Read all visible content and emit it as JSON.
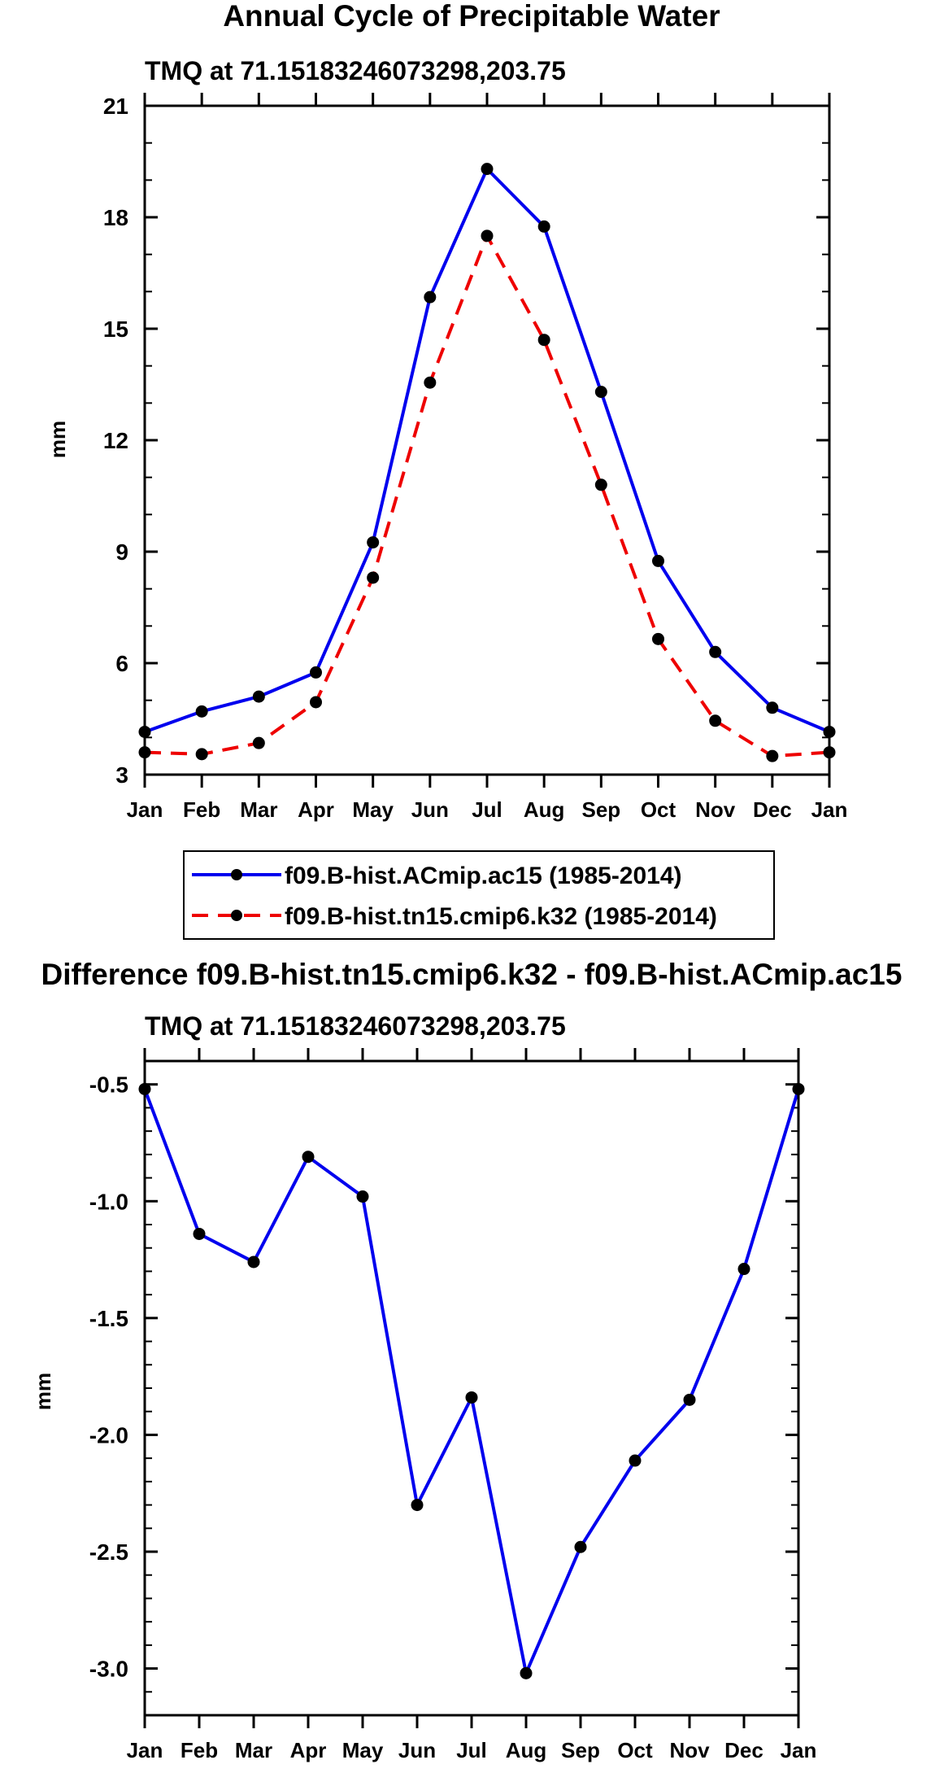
{
  "chart_data": [
    {
      "type": "line",
      "title": "Annual Cycle of Precipitable Water",
      "subtitle": "TMQ at 71.15183246073298,203.75",
      "xlabel": "",
      "ylabel": "mm",
      "categories": [
        "Jan",
        "Feb",
        "Mar",
        "Apr",
        "May",
        "Jun",
        "Jul",
        "Aug",
        "Sep",
        "Oct",
        "Nov",
        "Dec",
        "Jan"
      ],
      "ylim": [
        3,
        21
      ],
      "yticks": [
        3,
        6,
        9,
        12,
        15,
        18,
        21
      ],
      "yticks_labels": [
        "3",
        "6",
        "9",
        "12",
        "15",
        "18",
        "21"
      ],
      "grid": false,
      "legend_position": "below",
      "series": [
        {
          "name": "f09.B-hist.ACmip.ac15 (1985-2014)",
          "color": "#0000ee",
          "dash": "solid",
          "values": [
            4.15,
            4.7,
            5.1,
            5.75,
            9.25,
            15.85,
            19.3,
            17.75,
            13.3,
            8.75,
            6.3,
            4.8,
            4.15
          ]
        },
        {
          "name": "f09.B-hist.tn15.cmip6.k32 (1985-2014)",
          "color": "#ee0000",
          "dash": "dashed",
          "values": [
            3.6,
            3.55,
            3.85,
            4.95,
            8.3,
            13.55,
            17.5,
            14.7,
            10.8,
            6.65,
            4.45,
            3.5,
            3.6
          ]
        }
      ]
    },
    {
      "type": "line",
      "title": "Difference f09.B-hist.tn15.cmip6.k32 - f09.B-hist.ACmip.ac15",
      "subtitle": "TMQ at 71.15183246073298,203.75",
      "xlabel": "",
      "ylabel": "mm",
      "categories": [
        "Jan",
        "Feb",
        "Mar",
        "Apr",
        "May",
        "Jun",
        "Jul",
        "Aug",
        "Sep",
        "Oct",
        "Nov",
        "Dec",
        "Jan"
      ],
      "ylim": [
        -3.2,
        -0.4
      ],
      "yticks": [
        -3.0,
        -2.5,
        -2.0,
        -1.5,
        -1.0,
        -0.5
      ],
      "yticks_labels": [
        "-3.0",
        "-2.5",
        "-2.0",
        "-1.5",
        "-1.0",
        "-0.5"
      ],
      "grid": false,
      "series": [
        {
          "name": "difference",
          "color": "#0000ee",
          "dash": "solid",
          "values": [
            -0.52,
            -1.14,
            -1.26,
            -0.81,
            -0.98,
            -2.3,
            -1.84,
            -3.02,
            -2.48,
            -2.11,
            -1.85,
            -1.29,
            -0.52
          ]
        }
      ]
    }
  ]
}
